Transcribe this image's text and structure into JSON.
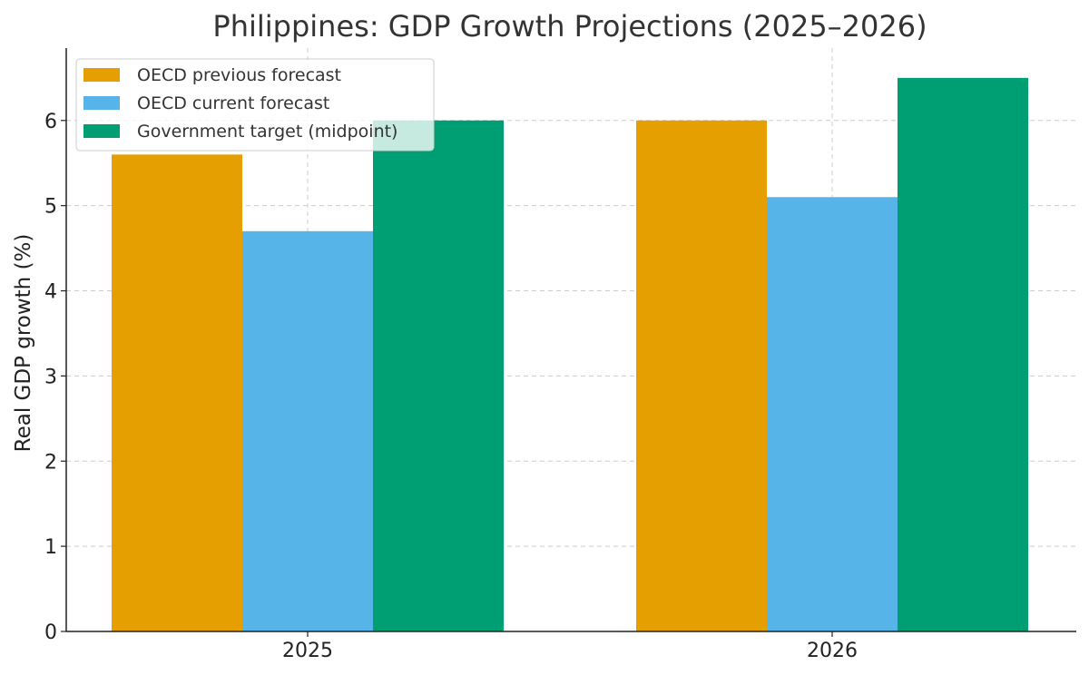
{
  "chart_data": {
    "type": "bar",
    "title": "Philippines: GDP Growth Projections (2025–2026)",
    "xlabel": "",
    "ylabel": "Real GDP growth (%)",
    "categories": [
      "2025",
      "2026"
    ],
    "series": [
      {
        "name": "OECD previous forecast",
        "values": [
          5.6,
          6.0
        ],
        "color": "#E69F00"
      },
      {
        "name": "OECD current forecast",
        "values": [
          4.7,
          5.1
        ],
        "color": "#56B4E9"
      },
      {
        "name": "Government target (midpoint)",
        "values": [
          6.0,
          6.5
        ],
        "color": "#009E73"
      }
    ],
    "ylim": [
      0,
      6.85
    ],
    "yticks": [
      "0",
      "1",
      "2",
      "3",
      "4",
      "5",
      "6"
    ],
    "grid": true,
    "legend": "top-left"
  }
}
